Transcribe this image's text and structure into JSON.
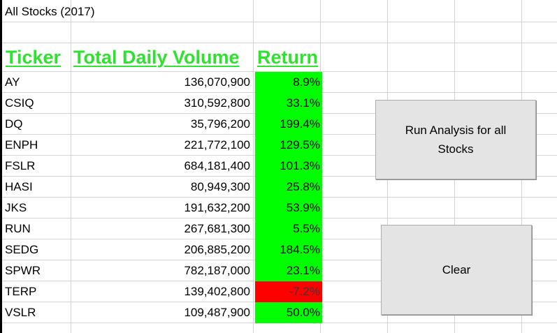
{
  "sheet": {
    "title": "All Stocks (2017)"
  },
  "headers": {
    "ticker": "Ticker",
    "volume": "Total Daily Volume",
    "return": "Return"
  },
  "rows": [
    {
      "ticker": "AY",
      "volume": "136,070,900",
      "return": "8.9%",
      "positive": true
    },
    {
      "ticker": "CSIQ",
      "volume": "310,592,800",
      "return": "33.1%",
      "positive": true
    },
    {
      "ticker": "DQ",
      "volume": "35,796,200",
      "return": "199.4%",
      "positive": true
    },
    {
      "ticker": "ENPH",
      "volume": "221,772,100",
      "return": "129.5%",
      "positive": true
    },
    {
      "ticker": "FSLR",
      "volume": "684,181,400",
      "return": "101.3%",
      "positive": true
    },
    {
      "ticker": "HASI",
      "volume": "80,949,300",
      "return": "25.8%",
      "positive": true
    },
    {
      "ticker": "JKS",
      "volume": "191,632,200",
      "return": "53.9%",
      "positive": true
    },
    {
      "ticker": "RUN",
      "volume": "267,681,300",
      "return": "5.5%",
      "positive": true
    },
    {
      "ticker": "SEDG",
      "volume": "206,885,200",
      "return": "184.5%",
      "positive": true
    },
    {
      "ticker": "SPWR",
      "volume": "782,187,000",
      "return": "23.1%",
      "positive": true
    },
    {
      "ticker": "TERP",
      "volume": "139,402,800",
      "return": "-7.2%",
      "positive": false
    },
    {
      "ticker": "VSLR",
      "volume": "109,487,900",
      "return": "50.0%",
      "positive": true
    }
  ],
  "buttons": {
    "run_label": "Run Analysis for all Stocks",
    "clear_label": "Clear"
  },
  "colors": {
    "header": "#2ee32e",
    "positive": "#00ff00",
    "negative": "#ff0000"
  }
}
